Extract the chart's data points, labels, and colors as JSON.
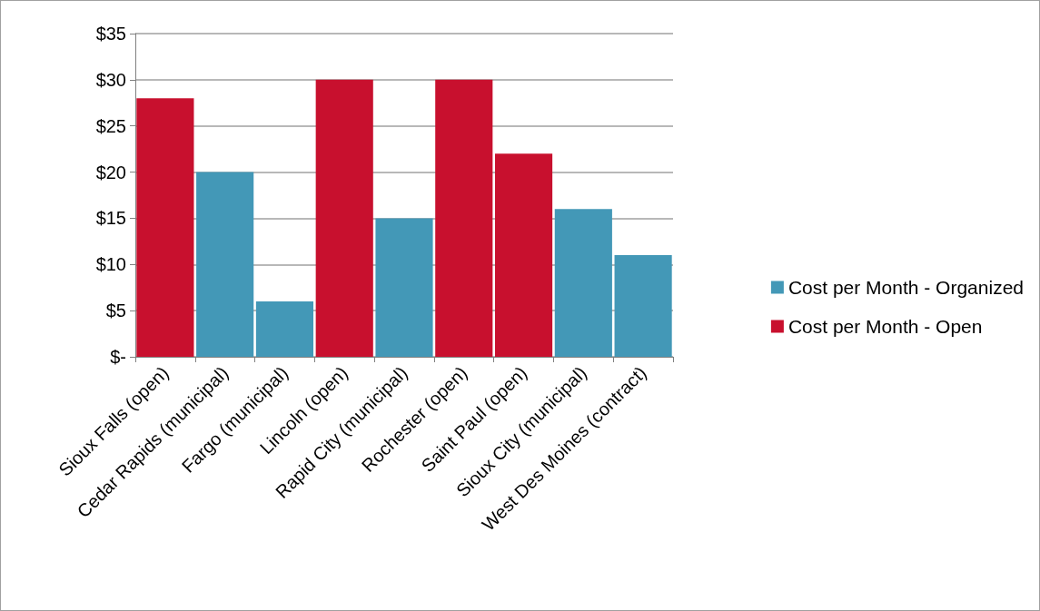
{
  "chart_data": {
    "type": "bar",
    "stacked": true,
    "categories": [
      "Sioux Falls (open)",
      "Cedar Rapids (municipal)",
      "Fargo (municipal)",
      "Lincoln (open)",
      "Rapid City (municipal)",
      "Rochester (open)",
      "Saint Paul (open)",
      "Sioux City (municipal)",
      "West Des Moines (contract)"
    ],
    "series": [
      {
        "name": "Cost per Month - Organized",
        "color": "#4398b7",
        "values": [
          null,
          20,
          6,
          null,
          15,
          null,
          null,
          16,
          11
        ]
      },
      {
        "name": "Cost per Month - Open",
        "color": "#c8102e",
        "values": [
          28,
          null,
          null,
          30,
          null,
          30,
          22,
          null,
          null
        ]
      }
    ],
    "ylim": [
      0,
      35
    ],
    "yticks": [
      {
        "value": 0,
        "label": "$-"
      },
      {
        "value": 5,
        "label": "$5"
      },
      {
        "value": 10,
        "label": "$10"
      },
      {
        "value": 15,
        "label": "$15"
      },
      {
        "value": 20,
        "label": "$20"
      },
      {
        "value": 25,
        "label": "$25"
      },
      {
        "value": 30,
        "label": "$30"
      },
      {
        "value": 35,
        "label": "$35"
      }
    ],
    "grid": "y",
    "legend": "right"
  }
}
